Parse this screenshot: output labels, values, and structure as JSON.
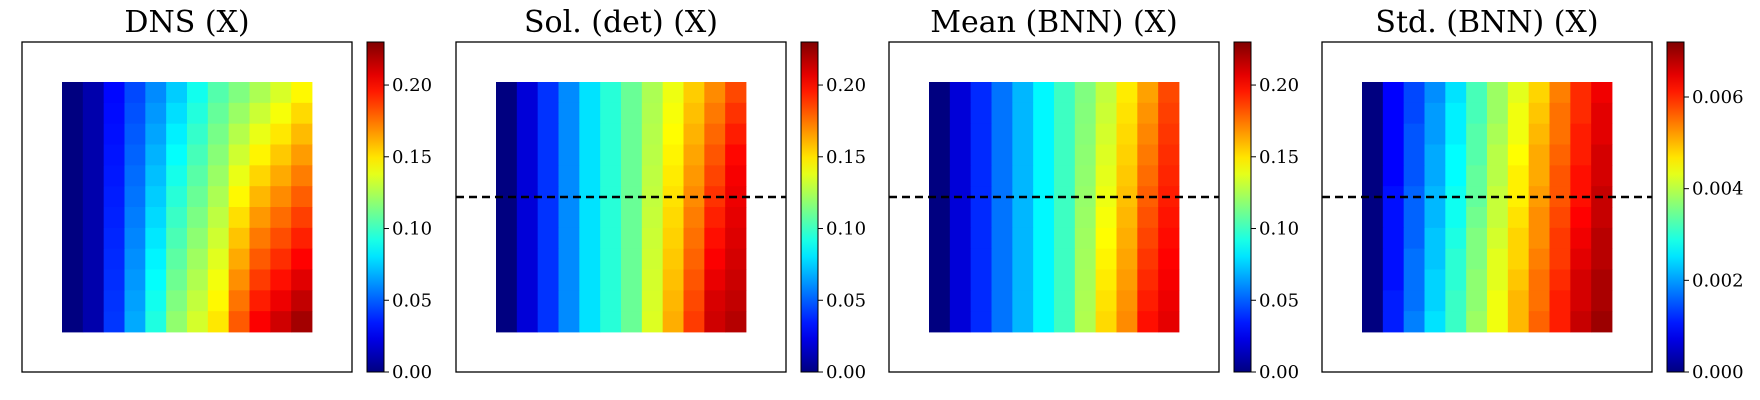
{
  "chart_data": [
    {
      "type": "heatmap",
      "title": "DNS (X)",
      "nx": 12,
      "ny": 12,
      "value_range": [
        0.0,
        0.23
      ],
      "colormap": "jet",
      "colorbar_ticks": [
        "0.00",
        "0.05",
        "0.10",
        "0.15",
        "0.20"
      ],
      "colorbar_tick_values": [
        0.0,
        0.05,
        0.1,
        0.15,
        0.2
      ],
      "dashed_line": false,
      "rows": [
        [
          0.0,
          0.01,
          0.03,
          0.045,
          0.06,
          0.075,
          0.09,
          0.105,
          0.115,
          0.125,
          0.135,
          0.145
        ],
        [
          0.0,
          0.01,
          0.031,
          0.047,
          0.063,
          0.079,
          0.094,
          0.109,
          0.121,
          0.132,
          0.142,
          0.152
        ],
        [
          0.0,
          0.01,
          0.032,
          0.049,
          0.066,
          0.083,
          0.098,
          0.113,
          0.127,
          0.139,
          0.149,
          0.159
        ],
        [
          0.0,
          0.01,
          0.033,
          0.051,
          0.069,
          0.087,
          0.102,
          0.117,
          0.133,
          0.146,
          0.156,
          0.166
        ],
        [
          0.0,
          0.01,
          0.034,
          0.053,
          0.072,
          0.091,
          0.106,
          0.121,
          0.139,
          0.153,
          0.163,
          0.173
        ],
        [
          0.0,
          0.01,
          0.035,
          0.055,
          0.075,
          0.095,
          0.11,
          0.125,
          0.145,
          0.16,
          0.17,
          0.18
        ],
        [
          0.0,
          0.01,
          0.036,
          0.057,
          0.078,
          0.099,
          0.114,
          0.129,
          0.151,
          0.167,
          0.177,
          0.187
        ],
        [
          0.0,
          0.01,
          0.037,
          0.059,
          0.081,
          0.103,
          0.118,
          0.133,
          0.157,
          0.174,
          0.184,
          0.194
        ],
        [
          0.0,
          0.01,
          0.038,
          0.061,
          0.084,
          0.107,
          0.122,
          0.137,
          0.163,
          0.181,
          0.191,
          0.201
        ],
        [
          0.0,
          0.01,
          0.039,
          0.063,
          0.087,
          0.111,
          0.126,
          0.141,
          0.169,
          0.188,
          0.198,
          0.208
        ],
        [
          0.0,
          0.01,
          0.04,
          0.065,
          0.09,
          0.115,
          0.13,
          0.145,
          0.175,
          0.195,
          0.205,
          0.215
        ],
        [
          0.0,
          0.01,
          0.041,
          0.067,
          0.093,
          0.119,
          0.134,
          0.149,
          0.181,
          0.202,
          0.212,
          0.222
        ]
      ]
    },
    {
      "type": "heatmap",
      "title": "Sol. (det) (X)",
      "nx": 12,
      "ny": 12,
      "value_range": [
        0.0,
        0.23
      ],
      "colormap": "jet",
      "colorbar_ticks": [
        "0.00",
        "0.05",
        "0.10",
        "0.15",
        "0.20"
      ],
      "colorbar_tick_values": [
        0.0,
        0.05,
        0.1,
        0.15,
        0.2
      ],
      "dashed_line": true,
      "rows": [
        [
          0.0,
          0.02,
          0.04,
          0.06,
          0.08,
          0.095,
          0.11,
          0.125,
          0.14,
          0.155,
          0.17,
          0.185
        ],
        [
          0.0,
          0.02,
          0.04,
          0.06,
          0.08,
          0.095,
          0.11,
          0.126,
          0.142,
          0.158,
          0.174,
          0.19
        ],
        [
          0.0,
          0.02,
          0.04,
          0.06,
          0.08,
          0.095,
          0.11,
          0.127,
          0.144,
          0.161,
          0.178,
          0.195
        ],
        [
          0.0,
          0.02,
          0.04,
          0.06,
          0.08,
          0.095,
          0.11,
          0.128,
          0.146,
          0.164,
          0.182,
          0.2
        ],
        [
          0.0,
          0.02,
          0.04,
          0.06,
          0.08,
          0.095,
          0.11,
          0.129,
          0.148,
          0.167,
          0.186,
          0.203
        ],
        [
          0.0,
          0.02,
          0.04,
          0.06,
          0.08,
          0.095,
          0.11,
          0.13,
          0.15,
          0.17,
          0.19,
          0.205
        ],
        [
          0.0,
          0.02,
          0.04,
          0.06,
          0.08,
          0.095,
          0.11,
          0.131,
          0.152,
          0.173,
          0.194,
          0.207
        ],
        [
          0.0,
          0.02,
          0.04,
          0.06,
          0.08,
          0.095,
          0.11,
          0.132,
          0.154,
          0.176,
          0.198,
          0.209
        ],
        [
          0.0,
          0.02,
          0.04,
          0.06,
          0.08,
          0.095,
          0.11,
          0.133,
          0.156,
          0.179,
          0.202,
          0.211
        ],
        [
          0.0,
          0.02,
          0.04,
          0.06,
          0.08,
          0.095,
          0.11,
          0.134,
          0.158,
          0.182,
          0.206,
          0.213
        ],
        [
          0.0,
          0.02,
          0.04,
          0.06,
          0.08,
          0.095,
          0.11,
          0.135,
          0.16,
          0.185,
          0.21,
          0.215
        ],
        [
          0.0,
          0.02,
          0.04,
          0.06,
          0.08,
          0.095,
          0.11,
          0.136,
          0.162,
          0.188,
          0.212,
          0.218
        ]
      ]
    },
    {
      "type": "heatmap",
      "title": "Mean (BNN) (X)",
      "nx": 12,
      "ny": 12,
      "value_range": [
        0.0,
        0.23
      ],
      "colormap": "jet",
      "colorbar_ticks": [
        "0.00",
        "0.05",
        "0.10",
        "0.15",
        "0.20"
      ],
      "colorbar_tick_values": [
        0.0,
        0.05,
        0.1,
        0.15,
        0.2
      ],
      "dashed_line": true,
      "rows": [
        [
          0.0,
          0.02,
          0.038,
          0.055,
          0.07,
          0.085,
          0.1,
          0.115,
          0.13,
          0.148,
          0.165,
          0.185
        ],
        [
          0.0,
          0.02,
          0.038,
          0.055,
          0.07,
          0.085,
          0.1,
          0.116,
          0.132,
          0.15,
          0.168,
          0.187
        ],
        [
          0.0,
          0.02,
          0.038,
          0.055,
          0.07,
          0.085,
          0.1,
          0.117,
          0.134,
          0.152,
          0.171,
          0.189
        ],
        [
          0.0,
          0.02,
          0.038,
          0.055,
          0.07,
          0.085,
          0.1,
          0.118,
          0.136,
          0.154,
          0.174,
          0.191
        ],
        [
          0.0,
          0.02,
          0.038,
          0.055,
          0.07,
          0.085,
          0.1,
          0.119,
          0.138,
          0.156,
          0.177,
          0.193
        ],
        [
          0.0,
          0.02,
          0.038,
          0.055,
          0.07,
          0.085,
          0.1,
          0.12,
          0.14,
          0.158,
          0.18,
          0.195
        ],
        [
          0.0,
          0.02,
          0.038,
          0.055,
          0.07,
          0.085,
          0.1,
          0.121,
          0.142,
          0.16,
          0.183,
          0.197
        ],
        [
          0.0,
          0.02,
          0.038,
          0.055,
          0.07,
          0.085,
          0.1,
          0.122,
          0.144,
          0.162,
          0.186,
          0.199
        ],
        [
          0.0,
          0.02,
          0.038,
          0.055,
          0.07,
          0.085,
          0.1,
          0.123,
          0.146,
          0.164,
          0.189,
          0.201
        ],
        [
          0.0,
          0.02,
          0.038,
          0.055,
          0.07,
          0.085,
          0.1,
          0.124,
          0.148,
          0.166,
          0.192,
          0.203
        ],
        [
          0.0,
          0.02,
          0.038,
          0.055,
          0.07,
          0.085,
          0.1,
          0.125,
          0.15,
          0.168,
          0.195,
          0.205
        ],
        [
          0.0,
          0.02,
          0.038,
          0.055,
          0.07,
          0.085,
          0.1,
          0.126,
          0.152,
          0.17,
          0.198,
          0.207
        ]
      ]
    },
    {
      "type": "heatmap",
      "title": "Std. (BNN) (X)",
      "nx": 12,
      "ny": 12,
      "value_range": [
        0.0,
        0.0072
      ],
      "colormap": "jet",
      "colorbar_ticks": [
        "0.000",
        "0.002",
        "0.004",
        "0.006"
      ],
      "colorbar_tick_values": [
        0.0,
        0.002,
        0.004,
        0.006
      ],
      "dashed_line": true,
      "rows": [
        [
          0.0,
          0.0009,
          0.0014,
          0.0019,
          0.0025,
          0.0032,
          0.0038,
          0.0043,
          0.0048,
          0.0054,
          0.006,
          0.0064
        ],
        [
          0.0,
          0.0009,
          0.0014,
          0.002,
          0.0026,
          0.0032,
          0.0038,
          0.0044,
          0.0049,
          0.0055,
          0.006,
          0.0065
        ],
        [
          0.0,
          0.0009,
          0.0015,
          0.002,
          0.0026,
          0.0033,
          0.0039,
          0.0044,
          0.005,
          0.0055,
          0.0061,
          0.0065
        ],
        [
          0.0,
          0.0009,
          0.0015,
          0.0021,
          0.0027,
          0.0033,
          0.004,
          0.0045,
          0.0051,
          0.0056,
          0.0061,
          0.0066
        ],
        [
          0.0,
          0.0009,
          0.0015,
          0.0021,
          0.0027,
          0.0034,
          0.004,
          0.0046,
          0.0051,
          0.0057,
          0.0062,
          0.0066
        ],
        [
          0.0,
          0.001,
          0.0016,
          0.0022,
          0.0028,
          0.0034,
          0.0041,
          0.0046,
          0.0052,
          0.0057,
          0.0062,
          0.0067
        ],
        [
          0.0,
          0.001,
          0.0016,
          0.0022,
          0.0028,
          0.0035,
          0.0041,
          0.0047,
          0.0053,
          0.0058,
          0.0063,
          0.0067
        ],
        [
          0.0,
          0.001,
          0.0016,
          0.0023,
          0.0029,
          0.0036,
          0.0042,
          0.0048,
          0.0053,
          0.0059,
          0.0064,
          0.0068
        ],
        [
          0.0,
          0.001,
          0.0017,
          0.0023,
          0.003,
          0.0036,
          0.0043,
          0.0048,
          0.0054,
          0.0059,
          0.0065,
          0.0068
        ],
        [
          0.0,
          0.001,
          0.0017,
          0.0024,
          0.003,
          0.0037,
          0.0043,
          0.0049,
          0.0055,
          0.006,
          0.0066,
          0.0069
        ],
        [
          0.0,
          0.0011,
          0.0017,
          0.0024,
          0.0031,
          0.0037,
          0.0044,
          0.005,
          0.0055,
          0.0061,
          0.0066,
          0.0069
        ],
        [
          0.0,
          0.0011,
          0.0018,
          0.0025,
          0.0031,
          0.0038,
          0.0044,
          0.005,
          0.0056,
          0.0061,
          0.0067,
          0.007
        ]
      ]
    }
  ]
}
